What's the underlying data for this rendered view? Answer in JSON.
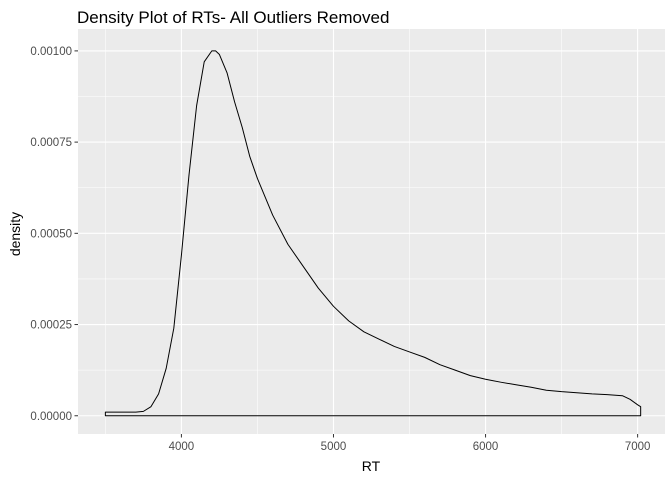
{
  "chart_data": {
    "type": "area",
    "title": "Density Plot of RTs- All Outliers Removed",
    "xlabel": "RT",
    "ylabel": "density",
    "xlim": [
      3320,
      7180
    ],
    "ylim": [
      -5e-05,
      0.00106
    ],
    "x_ticks": [
      {
        "value": 4000,
        "label": "4000"
      },
      {
        "value": 5000,
        "label": "5000"
      },
      {
        "value": 6000,
        "label": "6000"
      },
      {
        "value": 7000,
        "label": "7000"
      }
    ],
    "y_ticks": [
      {
        "value": 0,
        "label": "0.00000"
      },
      {
        "value": 0.00025,
        "label": "0.00025"
      },
      {
        "value": 0.0005,
        "label": "0.00050"
      },
      {
        "value": 0.00075,
        "label": "0.00075"
      },
      {
        "value": 0.001,
        "label": "0.00100"
      }
    ],
    "x_minor": [
      3500,
      4500,
      5500,
      6500
    ],
    "y_minor": [
      0.000125,
      0.000375,
      0.000625,
      0.000875
    ],
    "grid": true,
    "background": "#ebebeb",
    "grid_color": "#ffffff",
    "line_color": "#000000",
    "series": [
      {
        "x": [
          3500,
          3600,
          3700,
          3750,
          3800,
          3850,
          3900,
          3950,
          4000,
          4050,
          4100,
          4150,
          4200,
          4225,
          4250,
          4300,
          4350,
          4400,
          4450,
          4500,
          4550,
          4600,
          4700,
          4800,
          4900,
          5000,
          5100,
          5200,
          5300,
          5400,
          5500,
          5600,
          5700,
          5800,
          5900,
          6000,
          6100,
          6200,
          6300,
          6400,
          6500,
          6600,
          6700,
          6800,
          6900,
          6950,
          7000,
          7020
        ],
        "y": [
          1e-05,
          1e-05,
          1e-05,
          1.2e-05,
          2.5e-05,
          6e-05,
          0.00013,
          0.00024,
          0.00044,
          0.00066,
          0.00085,
          0.00097,
          0.001,
          0.001,
          0.00099,
          0.00094,
          0.00086,
          0.00079,
          0.00071,
          0.00065,
          0.0006,
          0.00055,
          0.00047,
          0.00041,
          0.00035,
          0.0003,
          0.00026,
          0.00023,
          0.00021,
          0.00019,
          0.000175,
          0.00016,
          0.00014,
          0.000125,
          0.00011,
          0.0001,
          9.2e-05,
          8.5e-05,
          7.8e-05,
          7e-05,
          6.6e-05,
          6.3e-05,
          6e-05,
          5.8e-05,
          5.5e-05,
          4.5e-05,
          3e-05,
          2.5e-05
        ]
      }
    ]
  }
}
